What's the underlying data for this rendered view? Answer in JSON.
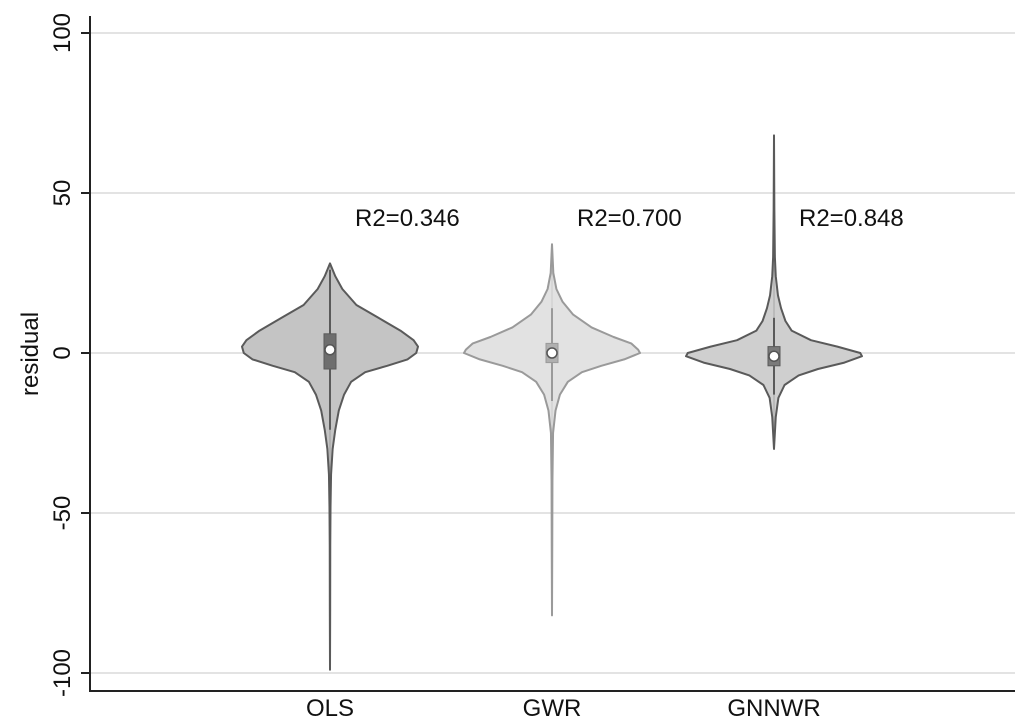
{
  "chart_data": {
    "type": "violin",
    "ylabel": "residual",
    "xlabel": "",
    "ylim": [
      -105,
      105
    ],
    "yticks": [
      "-100",
      "-50",
      "0",
      "50",
      "100"
    ],
    "ytick_values": [
      -100,
      -50,
      0,
      50,
      100
    ],
    "grid": true,
    "categories": [
      "OLS",
      "GWR",
      "GNNWR"
    ],
    "series": [
      {
        "category": "OLS",
        "annotation": "R2=0.346",
        "fill": "#c4c4c4",
        "stroke": "#5a5a5a",
        "box_fill": "#6e6e6e",
        "median": 1,
        "q1": -5,
        "q3": 6,
        "whisker_low": -24,
        "whisker_high": 26,
        "min": -99,
        "max": 28,
        "density": [
          [
            28,
            0.0
          ],
          [
            24,
            0.06
          ],
          [
            20,
            0.14
          ],
          [
            15,
            0.3
          ],
          [
            11,
            0.55
          ],
          [
            7,
            0.8
          ],
          [
            4,
            0.95
          ],
          [
            2,
            1.0
          ],
          [
            0,
            0.98
          ],
          [
            -2,
            0.88
          ],
          [
            -4,
            0.65
          ],
          [
            -6,
            0.4
          ],
          [
            -9,
            0.24
          ],
          [
            -13,
            0.16
          ],
          [
            -18,
            0.1
          ],
          [
            -24,
            0.06
          ],
          [
            -30,
            0.03
          ],
          [
            -38,
            0.012
          ],
          [
            -48,
            0.006
          ],
          [
            -60,
            0.003
          ],
          [
            -80,
            0.002
          ],
          [
            -99,
            0.0
          ]
        ]
      },
      {
        "category": "GWR",
        "annotation": "R2=0.700",
        "fill": "#e2e2e2",
        "stroke": "#9a9a9a",
        "box_fill": "#b0b0b0",
        "median": 0,
        "q1": -3,
        "q3": 3,
        "whisker_low": -15,
        "whisker_high": 14,
        "min": -82,
        "max": 34,
        "density": [
          [
            34,
            0.0
          ],
          [
            25,
            0.015
          ],
          [
            20,
            0.05
          ],
          [
            16,
            0.12
          ],
          [
            12,
            0.24
          ],
          [
            8,
            0.45
          ],
          [
            5,
            0.7
          ],
          [
            3,
            0.9
          ],
          [
            1,
            0.98
          ],
          [
            0,
            1.0
          ],
          [
            -2,
            0.82
          ],
          [
            -4,
            0.56
          ],
          [
            -6,
            0.34
          ],
          [
            -9,
            0.18
          ],
          [
            -13,
            0.09
          ],
          [
            -18,
            0.04
          ],
          [
            -25,
            0.012
          ],
          [
            -40,
            0.005
          ],
          [
            -60,
            0.003
          ],
          [
            -82,
            0.0
          ]
        ]
      },
      {
        "category": "GNNWR",
        "annotation": "R2=0.848",
        "fill": "#cfcfcf",
        "stroke": "#5a5a5a",
        "box_fill": "#7a7a7a",
        "median": -1,
        "q1": -4,
        "q3": 2,
        "whisker_low": -13,
        "whisker_high": 11,
        "min": -30,
        "max": 68,
        "density": [
          [
            68,
            0.0
          ],
          [
            45,
            0.004
          ],
          [
            30,
            0.01
          ],
          [
            24,
            0.02
          ],
          [
            18,
            0.045
          ],
          [
            14,
            0.08
          ],
          [
            10,
            0.13
          ],
          [
            7,
            0.2
          ],
          [
            4,
            0.42
          ],
          [
            2,
            0.72
          ],
          [
            0,
            0.98
          ],
          [
            -1,
            1.0
          ],
          [
            -3,
            0.8
          ],
          [
            -5,
            0.5
          ],
          [
            -7,
            0.28
          ],
          [
            -10,
            0.12
          ],
          [
            -14,
            0.05
          ],
          [
            -20,
            0.02
          ],
          [
            -30,
            0.0
          ]
        ]
      }
    ]
  }
}
